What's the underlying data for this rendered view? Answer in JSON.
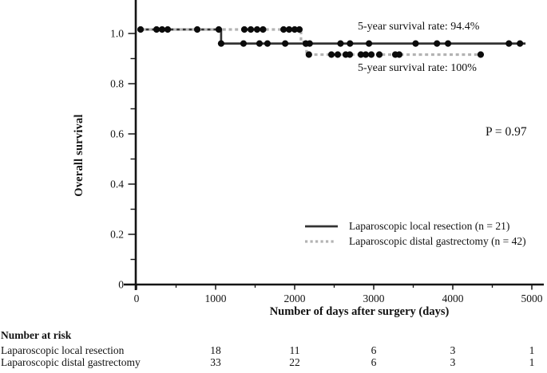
{
  "annotations": {
    "solid_rate": "5-year survival rate: 94.4%",
    "dotted_rate": "5-year survival rate: 100%",
    "p_value": "P = 0.97"
  },
  "chart_data": {
    "type": "line",
    "subtype": "kaplan-meier-step",
    "title": "",
    "xlabel": "Number of days after surgery (days)",
    "ylabel": "Overall survival",
    "xlim": [
      0,
      5000
    ],
    "ylim": [
      0,
      1.05
    ],
    "grid": false,
    "legend_position": "lower-right-inside",
    "x_ticks": [
      {
        "v": 0,
        "label": "0"
      },
      {
        "v": 1000,
        "label": "1000"
      },
      {
        "v": 2000,
        "label": "2000"
      },
      {
        "v": 3000,
        "label": "3000"
      },
      {
        "v": 4000,
        "label": "4000"
      },
      {
        "v": 5000,
        "label": "5000"
      }
    ],
    "x_minor_ticks": [
      500,
      1500,
      2500,
      3500,
      4500
    ],
    "y_ticks": [
      {
        "v": 1.0,
        "label": "1.0"
      },
      {
        "v": 0.8,
        "label": "0.8"
      },
      {
        "v": 0.6,
        "label": "0.6"
      },
      {
        "v": 0.4,
        "label": "0.4"
      },
      {
        "v": 0.2,
        "label": "0.2"
      },
      {
        "v": 0.0,
        "label": "0"
      }
    ],
    "series": [
      {
        "name": "Laparoscopic local resection (n = 21)",
        "line_style": "solid",
        "color": "#333333",
        "five_year_rate": "94.4%",
        "steps": [
          [
            0,
            1.0
          ],
          [
            1070,
            1.0
          ],
          [
            1070,
            0.944
          ],
          [
            4920,
            0.944
          ]
        ],
        "censor_marks": [
          [
            51,
            1.0
          ],
          [
            253,
            1.0
          ],
          [
            323,
            1.0
          ],
          [
            394,
            1.0
          ],
          [
            768,
            1.0
          ],
          [
            1040,
            1.0
          ],
          [
            1070,
            0.944
          ],
          [
            1353,
            0.944
          ],
          [
            1555,
            0.944
          ],
          [
            1656,
            0.944
          ],
          [
            1880,
            0.944
          ],
          [
            2140,
            0.944
          ],
          [
            2190,
            0.944
          ],
          [
            2580,
            0.944
          ],
          [
            2700,
            0.944
          ],
          [
            2940,
            0.944
          ],
          [
            3530,
            0.944
          ],
          [
            3800,
            0.944
          ],
          [
            3940,
            0.944
          ],
          [
            4710,
            0.944
          ],
          [
            4850,
            0.944
          ]
        ]
      },
      {
        "name": "Laparoscopic distal gastrectomy (n = 42)",
        "line_style": "dotted",
        "color": "#b3b3b3",
        "five_year_rate": "100%",
        "steps": [
          [
            0,
            1.0
          ],
          [
            2080,
            1.0
          ],
          [
            2080,
            0.95
          ],
          [
            2150,
            0.95
          ],
          [
            2150,
            0.9
          ],
          [
            4360,
            0.9
          ]
        ],
        "censor_marks": [
          [
            1364,
            1.0
          ],
          [
            1445,
            1.0
          ],
          [
            1525,
            1.0
          ],
          [
            1600,
            1.0
          ],
          [
            1860,
            1.0
          ],
          [
            1930,
            1.0
          ],
          [
            2000,
            1.0
          ],
          [
            2060,
            1.0
          ],
          [
            2180,
            0.9
          ],
          [
            2465,
            0.9
          ],
          [
            2545,
            0.9
          ],
          [
            2646,
            0.9
          ],
          [
            2697,
            0.9
          ],
          [
            2838,
            0.9
          ],
          [
            2899,
            0.9
          ],
          [
            2970,
            0.9
          ],
          [
            3071,
            0.9
          ],
          [
            3273,
            0.9
          ],
          [
            3323,
            0.9
          ],
          [
            4353,
            0.9
          ]
        ]
      }
    ]
  },
  "risk_table": {
    "title": "Number at risk",
    "time_points": [
      1000,
      2000,
      3000,
      4000,
      5000
    ],
    "rows": [
      {
        "label": "Laparoscopic local resection",
        "values": [
          "18",
          "11",
          "6",
          "3",
          "1"
        ]
      },
      {
        "label": "Laparoscopic distal gastrectomy",
        "values": [
          "33",
          "22",
          "6",
          "3",
          "1"
        ]
      }
    ]
  }
}
